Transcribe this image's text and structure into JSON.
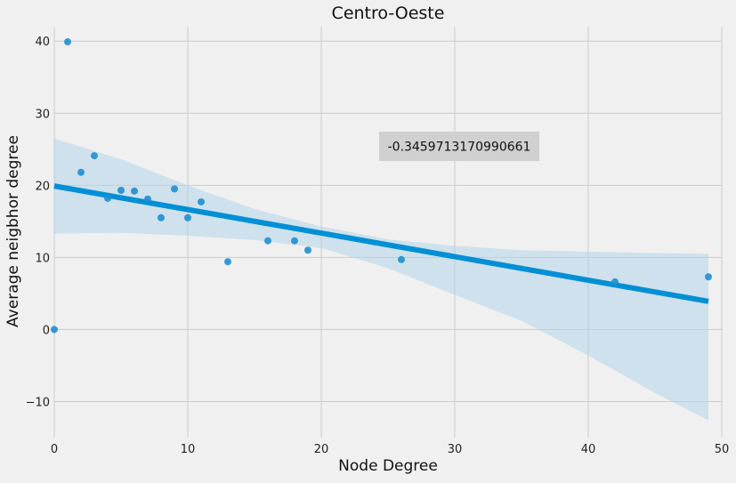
{
  "chart_data": {
    "type": "scatter",
    "title": "Centro-Oeste",
    "xlabel": "Node Degree",
    "ylabel": "Average neigbhor degree",
    "xlim": [
      0,
      50
    ],
    "ylim": [
      -15,
      42
    ],
    "xticks": [
      0,
      10,
      20,
      30,
      40,
      50
    ],
    "yticks": [
      -10,
      0,
      10,
      20,
      30,
      40
    ],
    "xtick_labels": [
      "0",
      "10",
      "20",
      "30",
      "40",
      "50"
    ],
    "ytick_labels": [
      "−10",
      "0",
      "10",
      "20",
      "30",
      "40"
    ],
    "grid": true,
    "annotation": "-0.3459713170990661",
    "colors": {
      "background": "#f0f0f0",
      "grid": "#cbcbcb",
      "points": "#1f8fd0",
      "regression_line": "#008fd5",
      "confidence_band": "#b3d6ea",
      "annotation_box": "#d0d0d0"
    },
    "points": [
      {
        "x": 0,
        "y": 0
      },
      {
        "x": 1,
        "y": 39.9
      },
      {
        "x": 2,
        "y": 21.8
      },
      {
        "x": 3,
        "y": 24.1
      },
      {
        "x": 4,
        "y": 18.2
      },
      {
        "x": 5,
        "y": 19.3
      },
      {
        "x": 6,
        "y": 19.2
      },
      {
        "x": 7,
        "y": 18.1
      },
      {
        "x": 8,
        "y": 15.5
      },
      {
        "x": 9,
        "y": 19.5
      },
      {
        "x": 10,
        "y": 15.5
      },
      {
        "x": 11,
        "y": 17.7
      },
      {
        "x": 13,
        "y": 9.4
      },
      {
        "x": 16,
        "y": 12.3
      },
      {
        "x": 18,
        "y": 12.3
      },
      {
        "x": 19,
        "y": 11.0
      },
      {
        "x": 26,
        "y": 9.7
      },
      {
        "x": 42,
        "y": 6.6
      },
      {
        "x": 49,
        "y": 7.3
      }
    ],
    "regression": {
      "x": [
        0,
        49
      ],
      "y": [
        19.9,
        3.9
      ]
    },
    "confidence_band": {
      "x": [
        0,
        5,
        10,
        15,
        20,
        25,
        30,
        35,
        40,
        45,
        49
      ],
      "upper": [
        26.5,
        23.6,
        20.0,
        16.7,
        14.3,
        12.5,
        11.6,
        11.0,
        10.8,
        10.6,
        10.5
      ],
      "lower": [
        13.3,
        13.4,
        13.0,
        12.4,
        11.3,
        8.5,
        4.8,
        1.2,
        -3.6,
        -8.8,
        -12.6
      ]
    }
  }
}
